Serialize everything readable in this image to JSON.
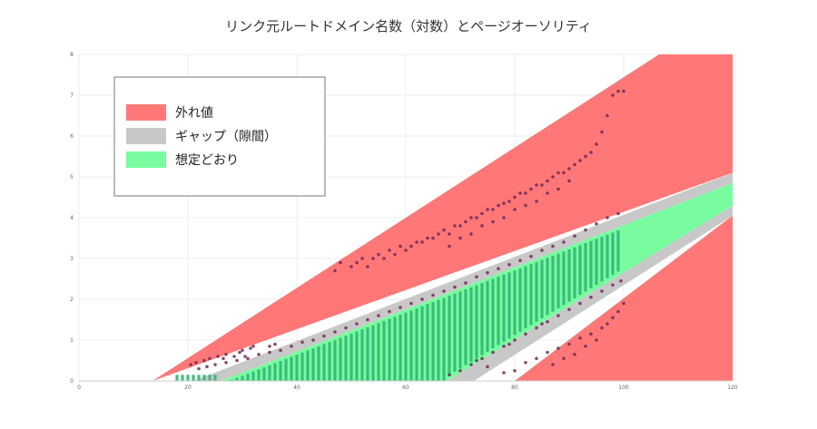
{
  "chart_data": {
    "type": "scatter",
    "title": "リンク元ルートドメイン名数（対数）とページオーソリティ",
    "xlabel": "",
    "ylabel": "",
    "xlim": [
      0,
      120
    ],
    "ylim": [
      0,
      8
    ],
    "x_ticks": [
      "0",
      "20",
      "40",
      "60",
      "80",
      "100",
      "120"
    ],
    "y_ticks": [
      "0",
      "1",
      "2",
      "3",
      "4",
      "5",
      "6",
      "7",
      "8"
    ],
    "grid": true,
    "legend_position": "top-left",
    "legend": [
      {
        "label": "外れ値",
        "color": "#ff7777"
      },
      {
        "label": "ギャップ（隙間）",
        "color": "#c8c8c8"
      },
      {
        "label": "想定どおり",
        "color": "#78fc9f"
      }
    ],
    "bands": {
      "outlier_upper": [
        [
          13.5,
          0
        ],
        [
          106.5,
          8
        ],
        [
          120,
          8
        ],
        [
          120,
          5.1
        ]
      ],
      "outlier_lower": [
        [
          80,
          0
        ],
        [
          120,
          4.05
        ],
        [
          120,
          0
        ]
      ],
      "gap_upper": [
        [
          21,
          0
        ],
        [
          120,
          5.1
        ],
        [
          120,
          4.85
        ],
        [
          26,
          0
        ]
      ],
      "gap_lower": [
        [
          67.5,
          0
        ],
        [
          120,
          4.3
        ],
        [
          120,
          4.05
        ],
        [
          72.5,
          0
        ]
      ],
      "expected": [
        [
          26,
          0
        ],
        [
          120,
          4.85
        ],
        [
          120,
          4.3
        ],
        [
          67.5,
          0
        ]
      ]
    },
    "scatter_color": "#6e2a55",
    "points_outlier": [
      [
        20.5,
        0.4
      ],
      [
        21.5,
        0.45
      ],
      [
        23,
        0.5
      ],
      [
        24,
        0.55
      ],
      [
        25.5,
        0.6
      ],
      [
        26.5,
        0.55
      ],
      [
        27,
        0.65
      ],
      [
        28.5,
        0.6
      ],
      [
        29.5,
        0.7
      ],
      [
        30,
        0.75
      ],
      [
        30.5,
        0.6
      ],
      [
        31.5,
        0.8
      ],
      [
        32,
        0.85
      ],
      [
        35,
        0.85
      ],
      [
        36,
        0.9
      ],
      [
        47,
        2.7
      ],
      [
        48,
        2.9
      ],
      [
        50,
        2.8
      ],
      [
        51,
        2.9
      ],
      [
        52,
        3.0
      ],
      [
        53,
        2.8
      ],
      [
        54,
        3.0
      ],
      [
        55,
        3.1
      ],
      [
        56,
        3.0
      ],
      [
        57,
        3.2
      ],
      [
        58,
        3.1
      ],
      [
        59,
        3.3
      ],
      [
        60,
        3.2
      ],
      [
        61,
        3.3
      ],
      [
        62,
        3.4
      ],
      [
        63,
        3.4
      ],
      [
        64,
        3.5
      ],
      [
        65,
        3.5
      ],
      [
        66,
        3.6
      ],
      [
        67,
        3.7
      ],
      [
        68,
        3.6
      ],
      [
        69,
        3.8
      ],
      [
        70,
        3.8
      ],
      [
        71,
        3.9
      ],
      [
        72,
        4.0
      ],
      [
        73,
        4.0
      ],
      [
        74,
        4.1
      ],
      [
        75,
        4.2
      ],
      [
        76,
        4.2
      ],
      [
        77,
        4.3
      ],
      [
        78,
        4.35
      ],
      [
        79,
        4.4
      ],
      [
        80,
        4.5
      ],
      [
        81,
        4.6
      ],
      [
        82,
        4.6
      ],
      [
        83,
        4.7
      ],
      [
        84,
        4.8
      ],
      [
        85,
        4.8
      ],
      [
        86,
        4.9
      ],
      [
        87,
        5.0
      ],
      [
        88,
        5.1
      ],
      [
        89,
        5.1
      ],
      [
        90,
        5.2
      ],
      [
        91,
        5.3
      ],
      [
        92,
        5.4
      ],
      [
        93,
        5.5
      ],
      [
        94,
        5.6
      ],
      [
        95,
        5.8
      ],
      [
        96,
        6.1
      ],
      [
        97,
        6.5
      ],
      [
        98,
        7.0
      ],
      [
        99,
        7.1
      ],
      [
        100,
        7.1
      ],
      [
        68,
        3.3
      ],
      [
        70,
        3.5
      ],
      [
        72,
        3.6
      ],
      [
        74,
        3.8
      ],
      [
        76,
        3.9
      ],
      [
        78,
        4.0
      ],
      [
        80,
        4.2
      ],
      [
        82,
        4.3
      ],
      [
        84,
        4.4
      ],
      [
        86,
        4.6
      ],
      [
        88,
        4.7
      ],
      [
        90,
        4.9
      ],
      [
        75,
        0.35
      ],
      [
        78,
        0.2
      ],
      [
        80,
        0.25
      ],
      [
        82,
        0.45
      ],
      [
        84,
        0.55
      ],
      [
        86,
        0.7
      ],
      [
        88,
        0.8
      ],
      [
        90,
        0.9
      ],
      [
        92,
        1.05
      ],
      [
        94,
        1.15
      ],
      [
        96,
        1.3
      ],
      [
        97,
        1.4
      ],
      [
        98,
        1.55
      ],
      [
        99,
        1.7
      ],
      [
        100,
        1.9
      ],
      [
        93,
        0.85
      ],
      [
        95,
        1.0
      ],
      [
        91,
        0.65
      ],
      [
        89,
        0.55
      ],
      [
        87,
        0.4
      ]
    ],
    "points_gap": [
      [
        22,
        0.3
      ],
      [
        23.5,
        0.35
      ],
      [
        25,
        0.4
      ],
      [
        27,
        0.45
      ],
      [
        29,
        0.5
      ],
      [
        31,
        0.55
      ],
      [
        33,
        0.65
      ],
      [
        35,
        0.7
      ],
      [
        37,
        0.75
      ],
      [
        39,
        0.85
      ],
      [
        41,
        0.95
      ],
      [
        43,
        1.0
      ],
      [
        45,
        1.1
      ],
      [
        47,
        1.2
      ],
      [
        49,
        1.3
      ],
      [
        51,
        1.4
      ],
      [
        53,
        1.5
      ],
      [
        55,
        1.6
      ],
      [
        57,
        1.7
      ],
      [
        59,
        1.8
      ],
      [
        61,
        1.9
      ],
      [
        63,
        2.0
      ],
      [
        65,
        2.1
      ],
      [
        67,
        2.2
      ],
      [
        69,
        2.3
      ],
      [
        71,
        2.4
      ],
      [
        73,
        2.55
      ],
      [
        75,
        2.65
      ],
      [
        77,
        2.75
      ],
      [
        79,
        2.85
      ],
      [
        81,
        2.95
      ],
      [
        83,
        3.05
      ],
      [
        85,
        3.2
      ],
      [
        87,
        3.3
      ],
      [
        89,
        3.4
      ],
      [
        91,
        3.55
      ],
      [
        93,
        3.7
      ],
      [
        95,
        3.85
      ],
      [
        97,
        4.0
      ],
      [
        99,
        4.1
      ],
      [
        68,
        0.15
      ],
      [
        70,
        0.25
      ],
      [
        72,
        0.4
      ],
      [
        74,
        0.55
      ],
      [
        76,
        0.7
      ],
      [
        78,
        0.85
      ],
      [
        80,
        1.0
      ],
      [
        82,
        1.15
      ],
      [
        84,
        1.3
      ],
      [
        86,
        1.45
      ],
      [
        88,
        1.6
      ],
      [
        90,
        1.75
      ],
      [
        92,
        1.9
      ],
      [
        94,
        2.05
      ],
      [
        96,
        2.2
      ],
      [
        98,
        2.35
      ],
      [
        99.5,
        2.45
      ],
      [
        73,
        0.5
      ],
      [
        79,
        0.9
      ],
      [
        85,
        1.4
      ]
    ]
  }
}
